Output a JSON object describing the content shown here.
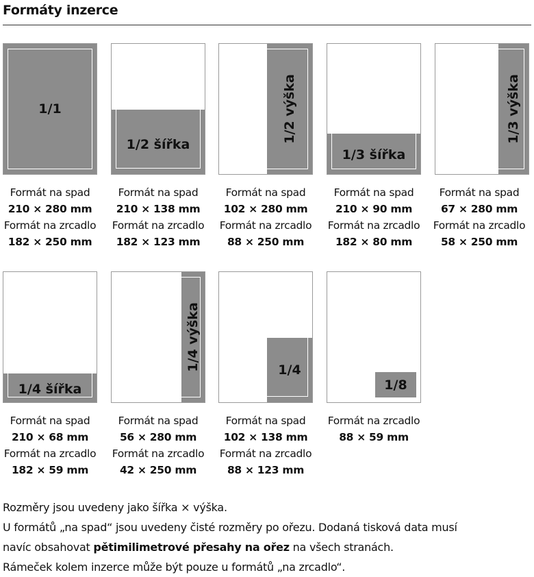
{
  "heading": "Formáty inzerce",
  "colors": {
    "ad_fill": "#8c8c8c",
    "page_border": "#9a9a9a",
    "trim_line": "#ffffff"
  },
  "formats": [
    {
      "label": "1/1",
      "bleed_caption": "Formát na spad",
      "bleed_size": "210 × 280 mm",
      "type_caption": "Formát na zrcadlo",
      "type_size": "182 × 250 mm"
    },
    {
      "label": "1/2 šířka",
      "bleed_caption": "Formát na spad",
      "bleed_size": "210 × 138 mm",
      "type_caption": "Formát na zrcadlo",
      "type_size": "182 × 123 mm"
    },
    {
      "label": "1/2 výška",
      "bleed_caption": "Formát na spad",
      "bleed_size": "102 × 280 mm",
      "type_caption": "Formát na zrcadlo",
      "type_size": "88 × 250 mm"
    },
    {
      "label": "1/3 šířka",
      "bleed_caption": "Formát na spad",
      "bleed_size": "210 × 90 mm",
      "type_caption": "Formát na zrcadlo",
      "type_size": "182 × 80 mm"
    },
    {
      "label": "1/3 výška",
      "bleed_caption": "Formát na spad",
      "bleed_size": "67 × 280 mm",
      "type_caption": "Formát na zrcadlo",
      "type_size": "58 × 250 mm"
    },
    {
      "label": "1/4 šířka",
      "bleed_caption": "Formát na spad",
      "bleed_size": "210 × 68 mm",
      "type_caption": "Formát na zrcadlo",
      "type_size": "182 × 59 mm"
    },
    {
      "label": "1/4 výška",
      "bleed_caption": "Formát na spad",
      "bleed_size": "56 × 280 mm",
      "type_caption": "Formát na zrcadlo",
      "type_size": "42 × 250 mm"
    },
    {
      "label": "1/4",
      "bleed_caption": "Formát na spad",
      "bleed_size": "102 × 138 mm",
      "type_caption": "Formát na zrcadlo",
      "type_size": "88 × 123 mm"
    },
    {
      "label": "1/8",
      "type_caption": "Formát na zrcadlo",
      "type_size": "88 × 59 mm"
    }
  ],
  "notes": {
    "line1": "Rozměry jsou uvedeny jako šířka × výška.",
    "line2": "U formátů „na spad“ jsou uvedeny čisté rozměry po ořezu. Dodaná tisková data musí",
    "line3_pre": "navíc obsahovat ",
    "line3_bold": "pětimilimetrové přesahy na ořez",
    "line3_post": " na všech stranách.",
    "line4": "Rámeček kolem inzerce může být pouze u formátů „na zrcadlo“."
  }
}
